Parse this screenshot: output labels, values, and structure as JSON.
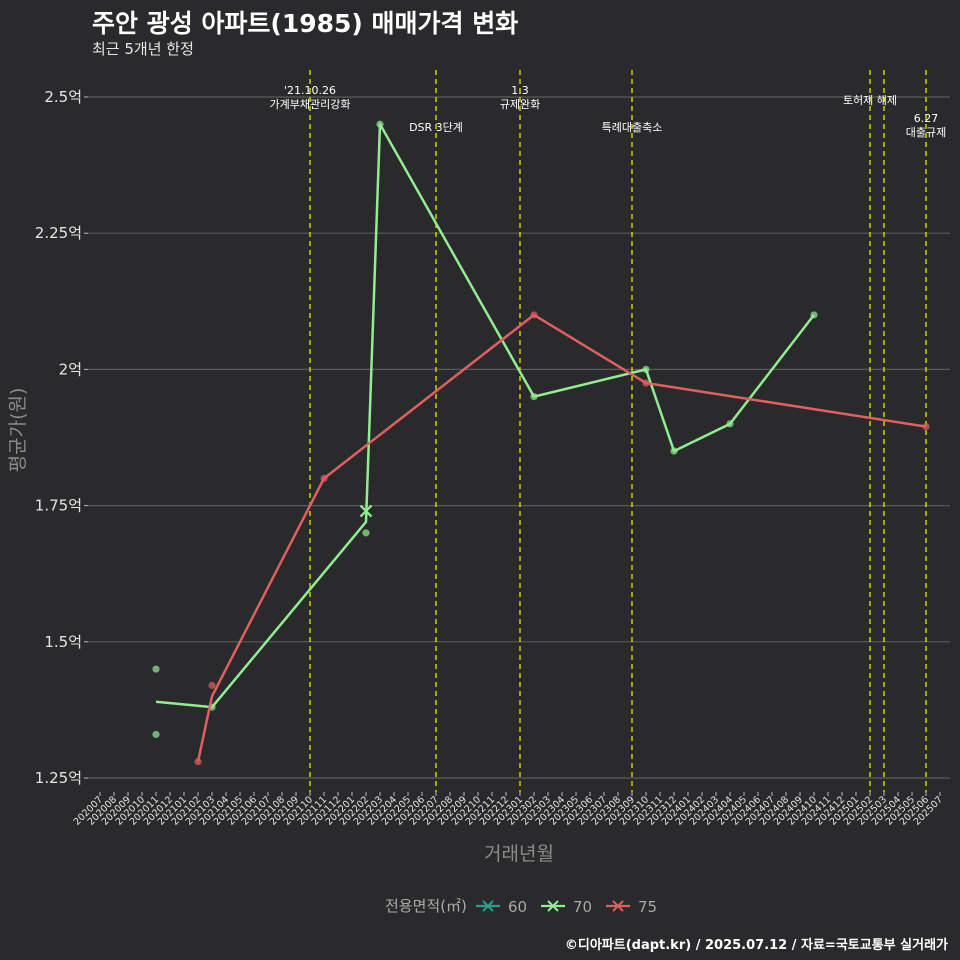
{
  "header": {
    "title": "주안 광성 아파트(1985) 매매가격 변화",
    "subtitle": "최근 5개년 한정"
  },
  "caption": "©디아파트(dapt.kr) / 2025.07.12 / 자료=국토교통부 실거래가",
  "chart_data": {
    "type": "line",
    "title": "주안 광성 아파트(1985) 매매가격 변화",
    "xlabel": "거래년월",
    "ylabel": "평균가(원)",
    "ylim": [
      1.23,
      2.53
    ],
    "y_ticks": [
      {
        "value": 1.25,
        "label": "1.25억"
      },
      {
        "value": 1.5,
        "label": "1.5억"
      },
      {
        "value": 1.75,
        "label": "1.75억"
      },
      {
        "value": 2.0,
        "label": "2억"
      },
      {
        "value": 2.25,
        "label": "2.25억"
      },
      {
        "value": 2.5,
        "label": "2.5억"
      }
    ],
    "x_categories": [
      "202007",
      "202008",
      "202009",
      "202010",
      "202011",
      "202012",
      "202101",
      "202102",
      "202103",
      "202104",
      "202105",
      "202106",
      "202107",
      "202108",
      "202109",
      "202110",
      "202111",
      "202112",
      "202201",
      "202202",
      "202203",
      "202204",
      "202205",
      "202206",
      "202207",
      "202208",
      "202209",
      "202210",
      "202211",
      "202212",
      "202301",
      "202302",
      "202303",
      "202304",
      "202305",
      "202306",
      "202307",
      "202308",
      "202309",
      "202310",
      "202311",
      "202312",
      "202401",
      "202402",
      "202403",
      "202404",
      "202405",
      "202406",
      "202407",
      "202408",
      "202409",
      "202410",
      "202411",
      "202412",
      "202501",
      "202502",
      "202503",
      "202504",
      "202505",
      "202506",
      "202507"
    ],
    "events": [
      {
        "month": "202110",
        "lines": [
          "'21.10.26",
          "가계부채관리강화"
        ],
        "row": 0
      },
      {
        "month": "202207",
        "lines": [
          "DSR 3단계"
        ],
        "row": 2
      },
      {
        "month": "202301",
        "lines": [
          "1.3",
          "규제완화"
        ],
        "row": 0
      },
      {
        "month": "202309",
        "lines": [
          "특례대출축소"
        ],
        "row": 2
      },
      {
        "month": "202502",
        "lines": [
          "토허제 해제"
        ],
        "row": 1
      },
      {
        "month": "202503",
        "lines": [],
        "row": 1
      },
      {
        "month": "202506",
        "lines": [
          "6.27",
          "대출규제"
        ],
        "row": 3
      }
    ],
    "legend_title": "전용면적(㎡)",
    "series": [
      {
        "name": "60",
        "color": "#2a9d8f",
        "line": [],
        "points": []
      },
      {
        "name": "70",
        "color": "#90ee90",
        "line": [
          {
            "x": "202011",
            "y": 1.39
          },
          {
            "x": "202103",
            "y": 1.38
          },
          {
            "x": "202202",
            "y": 1.72
          },
          {
            "x": "202203",
            "y": 2.45
          },
          {
            "x": "202302",
            "y": 1.95
          },
          {
            "x": "202310",
            "y": 2.0
          },
          {
            "x": "202312",
            "y": 1.85
          },
          {
            "x": "202404",
            "y": 1.9
          },
          {
            "x": "202410",
            "y": 2.1
          }
        ],
        "points": [
          {
            "x": "202011",
            "y": 1.45
          },
          {
            "x": "202011",
            "y": 1.33
          },
          {
            "x": "202103",
            "y": 1.38
          },
          {
            "x": "202202",
            "y": 1.7
          },
          {
            "x": "202203",
            "y": 2.45
          },
          {
            "x": "202302",
            "y": 1.95
          },
          {
            "x": "202310",
            "y": 2.0
          },
          {
            "x": "202312",
            "y": 1.85
          },
          {
            "x": "202404",
            "y": 1.9
          },
          {
            "x": "202410",
            "y": 2.1
          }
        ],
        "cross_marker": {
          "x": "202202",
          "y": 1.74
        }
      },
      {
        "name": "75",
        "color": "#e06060",
        "line": [
          {
            "x": "202102",
            "y": 1.28
          },
          {
            "x": "202103",
            "y": 1.4
          },
          {
            "x": "202111",
            "y": 1.8
          },
          {
            "x": "202302",
            "y": 2.1
          },
          {
            "x": "202310",
            "y": 1.975
          },
          {
            "x": "202506",
            "y": 1.895
          }
        ],
        "points": [
          {
            "x": "202102",
            "y": 1.28
          },
          {
            "x": "202103",
            "y": 1.42
          },
          {
            "x": "202111",
            "y": 1.8
          },
          {
            "x": "202302",
            "y": 2.1
          },
          {
            "x": "202310",
            "y": 1.975
          },
          {
            "x": "202506",
            "y": 1.895
          }
        ]
      }
    ]
  }
}
